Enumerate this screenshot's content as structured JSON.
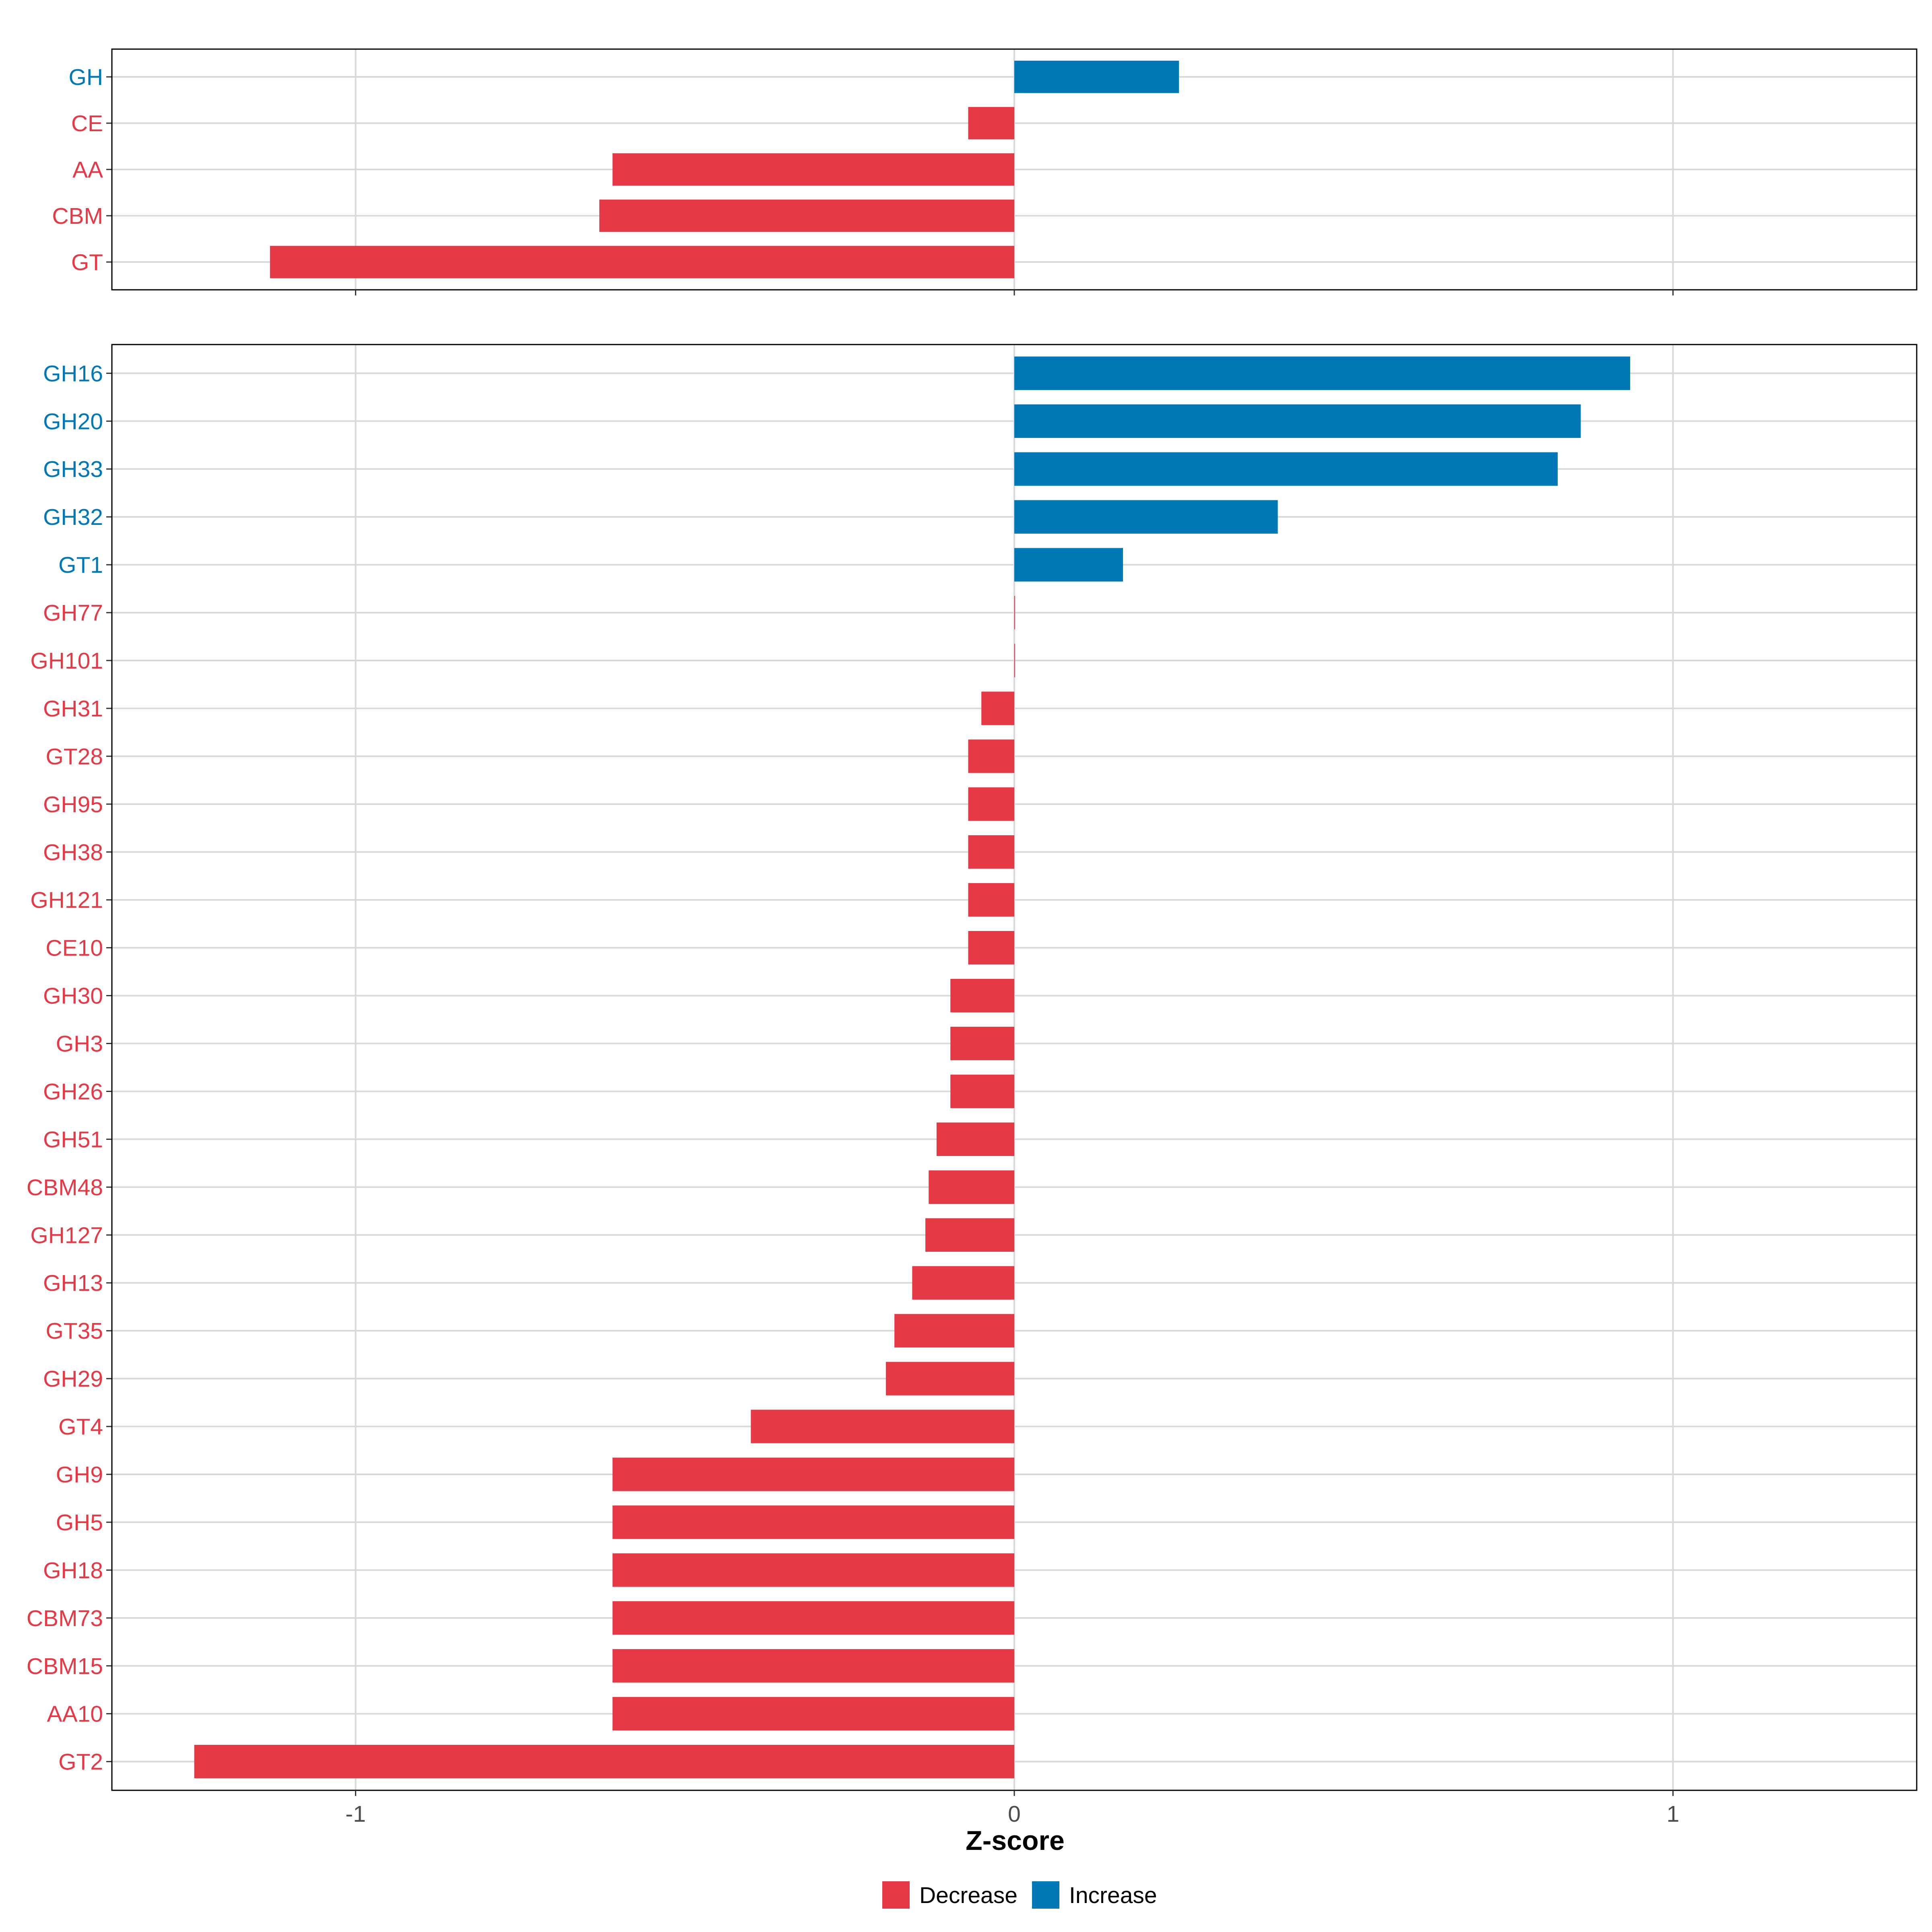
{
  "chart_data": [
    {
      "type": "bar",
      "orientation": "horizontal",
      "panel": "top",
      "categories": [
        "GH",
        "CE",
        "AA",
        "CBM",
        "GT"
      ],
      "values": [
        0.25,
        -0.07,
        -0.61,
        -0.63,
        -1.13
      ],
      "xlim": [
        -1.37,
        1.37
      ],
      "xticks": [
        -1,
        0,
        1
      ],
      "grid": true
    },
    {
      "type": "bar",
      "orientation": "horizontal",
      "panel": "bottom",
      "categories": [
        "GH16",
        "GH20",
        "GH33",
        "GH32",
        "GT1",
        "GH77",
        "GH101",
        "GH31",
        "GT28",
        "GH95",
        "GH38",
        "GH121",
        "CE10",
        "GH30",
        "GH3",
        "GH26",
        "GH51",
        "CBM48",
        "GH127",
        "GH13",
        "GT35",
        "GH29",
        "GT4",
        "GH9",
        "GH5",
        "GH18",
        "CBM73",
        "CBM15",
        "AA10",
        "GT2"
      ],
      "values": [
        0.935,
        0.86,
        0.825,
        0.4,
        0.165,
        0.0,
        0.0,
        -0.05,
        -0.07,
        -0.07,
        -0.07,
        -0.07,
        -0.07,
        -0.097,
        -0.097,
        -0.097,
        -0.118,
        -0.13,
        -0.135,
        -0.155,
        -0.182,
        -0.195,
        -0.4,
        -0.61,
        -0.61,
        -0.61,
        -0.61,
        -0.61,
        -0.61,
        -1.245
      ],
      "xlim": [
        -1.37,
        1.37
      ],
      "xticks": [
        -1,
        0,
        1
      ],
      "xtick_labels": [
        "-1",
        "0",
        "1"
      ],
      "xlabel": "Z-score",
      "grid": true
    }
  ],
  "legend": {
    "position": "bottom",
    "items": [
      {
        "label": "Decrease",
        "color": "#E63946"
      },
      {
        "label": "Increase",
        "color": "#0077B6"
      }
    ]
  },
  "colors": {
    "decrease": "#E63946",
    "increase": "#0077B6",
    "grid": "#d9d9d9",
    "axis_text": "#4d4d4d"
  }
}
